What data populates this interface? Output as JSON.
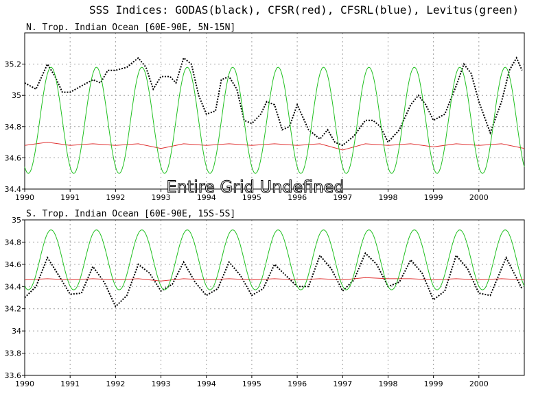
{
  "title": "SSS Indices: GODAS(black), CFSR(red), CFSRL(blue), Levitus(green)",
  "overlay_text": "Entire Grid Undefined",
  "colors": {
    "GODAS": "#000000",
    "CFSR": "#e03030",
    "CFSRL": "#2020ff",
    "Levitus": "#20c020",
    "grid": "#a0a0a0"
  },
  "chart_data": [
    {
      "type": "line",
      "title": "N. Trop. Indian Ocean [60E-90E, 5N-15N]",
      "xlim": [
        1990,
        2001
      ],
      "ylim": [
        34.4,
        35.4
      ],
      "yticks": [
        34.4,
        34.6,
        34.8,
        35,
        35.2
      ],
      "ytick_labels": [
        "34.4",
        "34.6",
        "34.8",
        "35",
        "35.2"
      ],
      "xticks": [
        1990,
        1991,
        1992,
        1993,
        1994,
        1995,
        1996,
        1997,
        1998,
        1999,
        2000
      ],
      "grid": true,
      "series": [
        {
          "name": "GODAS",
          "style": "dotted",
          "x": [
            1990.0,
            1990.25,
            1990.5,
            1990.67,
            1990.83,
            1991.0,
            1991.25,
            1991.5,
            1991.67,
            1991.83,
            1992.0,
            1992.25,
            1992.5,
            1992.67,
            1992.83,
            1993.0,
            1993.2,
            1993.33,
            1993.5,
            1993.67,
            1993.83,
            1994.0,
            1994.2,
            1994.33,
            1994.5,
            1994.67,
            1994.83,
            1995.0,
            1995.2,
            1995.33,
            1995.5,
            1995.67,
            1995.83,
            1996.0,
            1996.25,
            1996.5,
            1996.67,
            1996.83,
            1997.0,
            1997.25,
            1997.5,
            1997.67,
            1997.83,
            1998.0,
            1998.25,
            1998.5,
            1998.67,
            1998.83,
            1999.0,
            1999.25,
            1999.5,
            1999.67,
            1999.83,
            2000.0,
            2000.25,
            2000.5,
            2000.67,
            2000.83,
            2000.95
          ],
          "values": [
            35.08,
            35.04,
            35.2,
            35.12,
            35.02,
            35.02,
            35.06,
            35.1,
            35.08,
            35.16,
            35.16,
            35.18,
            35.24,
            35.18,
            35.04,
            35.12,
            35.12,
            35.08,
            35.24,
            35.2,
            35.0,
            34.88,
            34.9,
            35.1,
            35.12,
            35.04,
            34.84,
            34.82,
            34.88,
            34.96,
            34.94,
            34.78,
            34.8,
            34.94,
            34.78,
            34.72,
            34.78,
            34.7,
            34.68,
            34.74,
            34.84,
            34.84,
            34.8,
            34.7,
            34.78,
            34.94,
            35.0,
            34.94,
            34.84,
            34.88,
            35.06,
            35.2,
            35.14,
            34.96,
            34.76,
            34.96,
            35.16,
            35.24,
            35.16
          ]
        },
        {
          "name": "CFSR",
          "style": "solid",
          "x": [
            1990.0,
            1990.5,
            1991.0,
            1991.5,
            1992.0,
            1992.5,
            1993.0,
            1993.5,
            1994.0,
            1994.5,
            1995.0,
            1995.5,
            1996.0,
            1996.5,
            1997.0,
            1997.5,
            1998.0,
            1998.5,
            1999.0,
            1999.5,
            2000.0,
            2000.5,
            2001.0
          ],
          "values": [
            34.68,
            34.7,
            34.68,
            34.69,
            34.68,
            34.69,
            34.66,
            34.69,
            34.68,
            34.69,
            34.68,
            34.69,
            34.68,
            34.69,
            34.65,
            34.69,
            34.68,
            34.69,
            34.67,
            34.69,
            34.68,
            34.69,
            34.66
          ]
        },
        {
          "name": "Levitus",
          "style": "solid",
          "max": 35.18,
          "min": 34.5,
          "peak_phase": 0.58,
          "x_start": 1990.0,
          "x_end": 2001.0
        }
      ]
    },
    {
      "type": "line",
      "title": "S. Trop. Indian Ocean [60E-90E, 15S-5S]",
      "xlim": [
        1990,
        2001
      ],
      "ylim": [
        33.6,
        35.0
      ],
      "yticks": [
        33.6,
        33.8,
        34,
        34.2,
        34.4,
        34.6,
        34.8,
        35
      ],
      "ytick_labels": [
        "33.6",
        "33.8",
        "34",
        "34.2",
        "34.4",
        "34.6",
        "34.8",
        "35"
      ],
      "xticks": [
        1990,
        1991,
        1992,
        1993,
        1994,
        1995,
        1996,
        1997,
        1998,
        1999,
        2000
      ],
      "grid": true,
      "series": [
        {
          "name": "GODAS",
          "style": "dotted",
          "x": [
            1990.0,
            1990.25,
            1990.5,
            1990.75,
            1991.0,
            1991.25,
            1991.5,
            1991.75,
            1992.0,
            1992.25,
            1992.5,
            1992.75,
            1993.0,
            1993.25,
            1993.5,
            1993.75,
            1994.0,
            1994.25,
            1994.5,
            1994.75,
            1995.0,
            1995.25,
            1995.5,
            1995.75,
            1996.0,
            1996.25,
            1996.5,
            1996.75,
            1997.0,
            1997.25,
            1997.5,
            1997.75,
            1998.0,
            1998.25,
            1998.5,
            1998.75,
            1999.0,
            1999.25,
            1999.5,
            1999.75,
            2000.0,
            2000.25,
            2000.6,
            2000.95
          ],
          "values": [
            34.3,
            34.4,
            34.66,
            34.5,
            34.33,
            34.34,
            34.58,
            34.44,
            34.22,
            34.32,
            34.6,
            34.52,
            34.36,
            34.42,
            34.62,
            34.44,
            34.32,
            34.38,
            34.62,
            34.5,
            34.32,
            34.38,
            34.6,
            34.5,
            34.4,
            34.4,
            34.68,
            34.56,
            34.36,
            34.46,
            34.7,
            34.6,
            34.4,
            34.44,
            34.64,
            34.52,
            34.28,
            34.36,
            34.68,
            34.56,
            34.34,
            34.32,
            34.66,
            34.38
          ]
        },
        {
          "name": "CFSR",
          "style": "solid",
          "x": [
            1990.0,
            1990.5,
            1991.0,
            1991.5,
            1992.0,
            1992.5,
            1993.0,
            1993.5,
            1994.0,
            1994.5,
            1995.0,
            1995.5,
            1996.0,
            1996.5,
            1997.0,
            1997.5,
            1998.0,
            1998.5,
            1999.0,
            1999.5,
            2000.0,
            2000.5,
            2001.0
          ],
          "values": [
            34.46,
            34.47,
            34.46,
            34.47,
            34.46,
            34.47,
            34.45,
            34.47,
            34.46,
            34.47,
            34.46,
            34.47,
            34.46,
            34.47,
            34.46,
            34.48,
            34.47,
            34.47,
            34.46,
            34.47,
            34.46,
            34.47,
            34.46
          ]
        },
        {
          "name": "Levitus",
          "style": "solid",
          "max": 34.91,
          "min": 34.37,
          "peak_phase": 0.58,
          "x_start": 1990.0,
          "x_end": 2001.0
        }
      ]
    }
  ]
}
